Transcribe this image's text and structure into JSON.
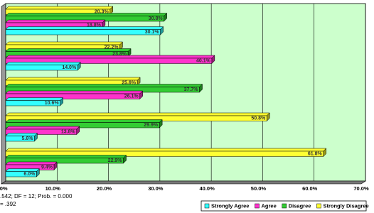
{
  "chart_data": {
    "type": "bar",
    "orientation": "horizontal",
    "categories": [
      null,
      null,
      null,
      null,
      null
    ],
    "series": [
      {
        "name": "Strongly Agree",
        "color": "#33ffff",
        "values": [
          30.1,
          14.0,
          10.6,
          5.6,
          6.0
        ],
        "value_labels": [
          "30.1%",
          "14.0%",
          "10.6%",
          "5.6%",
          "6.0%"
        ]
      },
      {
        "name": "Agree",
        "color": "#ff33cc",
        "values": [
          18.8,
          40.1,
          26.1,
          13.8,
          9.4
        ],
        "value_labels": [
          "18.8%",
          "40.1%",
          "26.1%",
          "13.8%",
          "9.4%"
        ]
      },
      {
        "name": "Disagree",
        "color": "#33cc33",
        "values": [
          30.8,
          23.8,
          37.7,
          29.9,
          22.9
        ],
        "value_labels": [
          "30.8%",
          "23.8%",
          "37.7%",
          "29.9%",
          "22.9%"
        ]
      },
      {
        "name": "Strongly Disagree",
        "color": "#ffff33",
        "values": [
          20.3,
          22.2,
          25.6,
          50.8,
          61.8
        ],
        "value_labels": [
          "20.3%",
          "22.2%",
          "25.6%",
          "50.8%",
          "61.8%"
        ]
      }
    ],
    "xlim": [
      0,
      70
    ],
    "xticks": [
      {
        "value": 0,
        "label": "0.0%"
      },
      {
        "value": 10,
        "label": "10.0%"
      },
      {
        "value": 20,
        "label": "20.0%"
      },
      {
        "value": 30,
        "label": "30.0%"
      },
      {
        "value": 40,
        "label": "40.0%"
      },
      {
        "value": 50,
        "label": "50.0%"
      },
      {
        "value": 60,
        "label": "60.0%"
      },
      {
        "value": 70,
        "label": "70.0%"
      }
    ],
    "grid": true,
    "plot_background": "#ccffcc",
    "notes": [
      ".542; DF = 12; Prob. = 0.000",
      "= .392"
    ]
  }
}
